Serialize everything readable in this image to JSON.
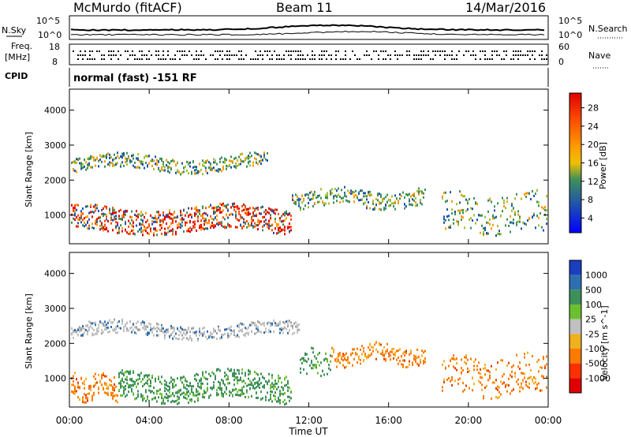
{
  "header": {
    "station": "McMurdo (fitACF)",
    "beam": "Beam 11",
    "date": "14/Mar/2016"
  },
  "top_panel": {
    "left_label": "N.Sky",
    "right_label": "N.Search",
    "left_ticks": [
      "10^5",
      "10^0"
    ],
    "right_ticks": [
      "10^5",
      "10^0"
    ],
    "freq_label": "Freq.",
    "freq_unit": "[MHz]",
    "freq_ticks": [
      "18",
      "8"
    ],
    "nave_label": "Nave",
    "nave_ticks": [
      "60",
      "0"
    ],
    "cpid_label": "CPID",
    "cpid_text": "normal (fast) -151 RF"
  },
  "chart_data": [
    {
      "type": "heatmap",
      "name": "power",
      "ylabel": "Slant Range [km]",
      "ylim": [
        180,
        4600
      ],
      "yticks": [
        "4000",
        "3000",
        "2000",
        "1000"
      ],
      "colorbar_label": "Power [dB]",
      "colorbar_ticks": [
        "28",
        "24",
        "20",
        "16",
        "12",
        "8",
        "4"
      ],
      "colorbar_colors": [
        "#e00000",
        "#ff4000",
        "#ff8c00",
        "#f0b800",
        "#3e8f5a",
        "#2050b0",
        "#0000ff"
      ]
    },
    {
      "type": "heatmap",
      "name": "velocity",
      "ylabel": "Slant Range [km]",
      "ylim": [
        180,
        4600
      ],
      "yticks": [
        "4000",
        "3000",
        "2000",
        "1000"
      ],
      "xticks": [
        "00:00",
        "04:00",
        "08:00",
        "12:00",
        "16:00",
        "20:00",
        "00:00"
      ],
      "xlabel": "Time UT",
      "colorbar_label": "Velocity [m s^-1]",
      "colorbar_ticks": [
        "1000",
        "500",
        "100",
        "25",
        "-25",
        "-100",
        "-500",
        "-1000"
      ],
      "colorbar_colors": [
        "#1a3fbf",
        "#2e6fb0",
        "#3e8f5a",
        "#6cc030",
        "#c0c0c0",
        "#f0b020",
        "#ff7a00",
        "#ff3000",
        "#e00000"
      ]
    }
  ]
}
